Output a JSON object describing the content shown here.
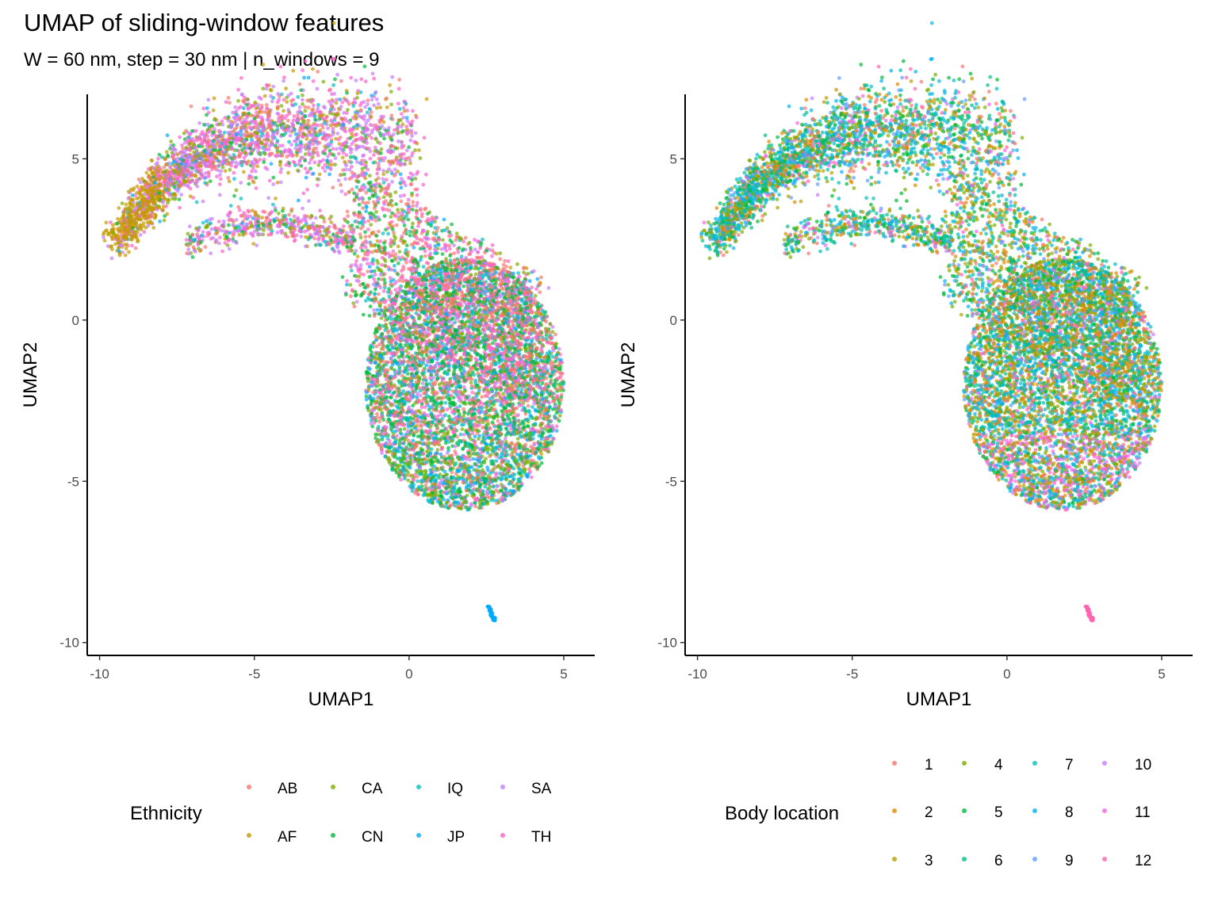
{
  "title": "UMAP of sliding-window features",
  "subtitle": "W = 60 nm, step = 30 nm | n_windows = 9",
  "chart_data": [
    {
      "type": "scatter",
      "name": "ethnicity",
      "xlabel": "UMAP1",
      "ylabel": "UMAP2",
      "xlim": [
        -10.4,
        6.0
      ],
      "ylim": [
        -10.4,
        7.0
      ],
      "xticks": [
        -10,
        -5,
        0,
        5
      ],
      "yticks": [
        -10,
        -5,
        0,
        5
      ],
      "tick_labels_x": [
        "-10",
        "-5",
        "0",
        "5"
      ],
      "tick_labels_y": [
        "-10",
        "-5",
        "0",
        "5"
      ],
      "grid": false,
      "legend_position": "bottom",
      "legend_title": "Ethnicity",
      "series": [
        {
          "name": "AB",
          "color": "#F8766D"
        },
        {
          "name": "AF",
          "color": "#C49A00"
        },
        {
          "name": "CA",
          "color": "#7CAE00"
        },
        {
          "name": "CN",
          "color": "#00BA38"
        },
        {
          "name": "IQ",
          "color": "#00BFC4"
        },
        {
          "name": "JP",
          "color": "#00A9FF"
        },
        {
          "name": "SA",
          "color": "#C77CFF"
        },
        {
          "name": "TH",
          "color": "#FF61CC"
        }
      ],
      "n_points_approx": 12000,
      "note": "Points form a crescent-shaped manifold from about (-9.5, 2) through (-3, 6) down to (2, -6); an isolated cluster near (2.6, -9.1) is JP."
    },
    {
      "type": "scatter",
      "name": "body_location",
      "xlabel": "UMAP1",
      "ylabel": "UMAP2",
      "xlim": [
        -10.4,
        6.0
      ],
      "ylim": [
        -10.4,
        7.0
      ],
      "xticks": [
        -10,
        -5,
        0,
        5
      ],
      "yticks": [
        -10,
        -5,
        0,
        5
      ],
      "tick_labels_x": [
        "-10",
        "-5",
        "0",
        "5"
      ],
      "tick_labels_y": [
        "-10",
        "-5",
        "0",
        "5"
      ],
      "grid": false,
      "legend_position": "bottom",
      "legend_title": "Body location",
      "series": [
        {
          "name": "1",
          "color": "#F8766D"
        },
        {
          "name": "2",
          "color": "#DE8C00"
        },
        {
          "name": "3",
          "color": "#B79F00"
        },
        {
          "name": "4",
          "color": "#7CAE00"
        },
        {
          "name": "5",
          "color": "#00BA38"
        },
        {
          "name": "6",
          "color": "#00C08B"
        },
        {
          "name": "7",
          "color": "#00BFC4"
        },
        {
          "name": "8",
          "color": "#00B4F0"
        },
        {
          "name": "9",
          "color": "#619CFF"
        },
        {
          "name": "10",
          "color": "#C77CFF"
        },
        {
          "name": "11",
          "color": "#F564E3"
        },
        {
          "name": "12",
          "color": "#FF64B0"
        }
      ],
      "n_points_approx": 12000,
      "note": "Same embedding colored by body location; isolated cluster near (2.6, -9.1) is location 12."
    }
  ]
}
